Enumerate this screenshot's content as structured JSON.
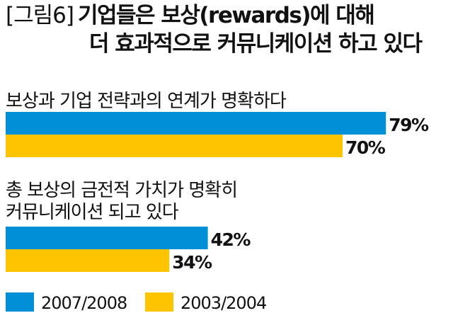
{
  "figure_label": "[그림6]",
  "title_line1": "기업들은 보상(rewards)에 대해",
  "title_line2": "더 효과적으로 커뮤니케이션 하고 있다",
  "colors": {
    "series_2007": "#0090D8",
    "series_2003": "#FFC400",
    "text": "#111111"
  },
  "chart_data": {
    "type": "bar",
    "orientation": "horizontal",
    "title": "기업들은 보상(rewards)에 대해 더 효과적으로 커뮤니케이션 하고 있다",
    "categories": [
      [
        "보상과 기업 전략과의 연계가 명확하다"
      ],
      [
        "총 보상의 금전적 가치가 명확히",
        "커뮤니케이션 되고 있다"
      ]
    ],
    "series": [
      {
        "name": "2007/2008",
        "values": [
          79,
          42
        ],
        "value_labels": [
          "79%",
          "42%"
        ]
      },
      {
        "name": "2003/2004",
        "values": [
          70,
          34
        ],
        "value_labels": [
          "70%",
          "34%"
        ]
      }
    ],
    "value_unit": "%",
    "xlim": [
      0,
      100
    ],
    "grid": false,
    "legend": "bottom-left"
  }
}
